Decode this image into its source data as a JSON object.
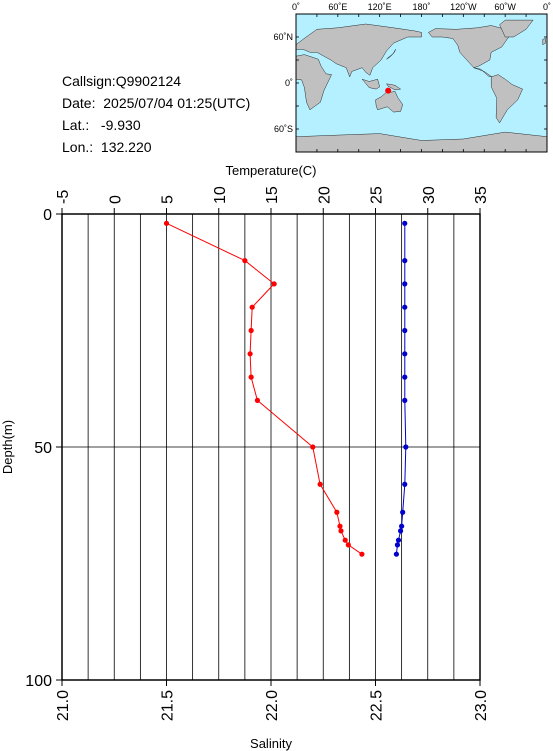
{
  "info": {
    "callsign": "Callsign:Q9902124",
    "date": "Date:  2025/07/04 01:25(UTC)",
    "lat": "Lat.:   -9.930",
    "lon": "Lon.:  132.220"
  },
  "map": {
    "top_labels": [
      "0˚",
      "60˚E",
      "120˚E",
      "180˚",
      "120˚W",
      "60˚W",
      "0˚"
    ],
    "left_labels": [
      "60˚N",
      "0˚",
      "60˚S"
    ],
    "ocean_color": "#b4f0ff",
    "land_color": "#c0c0c0",
    "marker_color": "#ff0000",
    "marker": {
      "lon": 132.22,
      "lat": -9.93
    }
  },
  "chart_data": {
    "type": "line",
    "title": "",
    "x_top_label": "Temperature(C)",
    "x_bottom_label": "Salinity",
    "ylabel": "Depth(m)",
    "x_top_lim": [
      -5,
      35
    ],
    "x_top_ticks": [
      "-5",
      "0",
      "5",
      "10",
      "15",
      "20",
      "25",
      "30",
      "35"
    ],
    "x_bottom_lim": [
      21.0,
      23.0
    ],
    "x_bottom_ticks": [
      "21.0",
      "21.5",
      "22.0",
      "22.5",
      "23.0"
    ],
    "ylim": [
      0,
      100
    ],
    "y_ticks": [
      "0",
      "50",
      "100"
    ],
    "grid": true,
    "series": [
      {
        "color": "#ff0000",
        "axis": "temperature",
        "points": [
          {
            "x": 5.0,
            "depth": 2
          },
          {
            "x": 12.5,
            "depth": 10
          },
          {
            "x": 15.3,
            "depth": 15
          },
          {
            "x": 13.2,
            "depth": 20
          },
          {
            "x": 13.1,
            "depth": 25
          },
          {
            "x": 13.0,
            "depth": 30
          },
          {
            "x": 13.1,
            "depth": 35
          },
          {
            "x": 13.7,
            "depth": 40
          },
          {
            "x": 19.0,
            "depth": 50
          },
          {
            "x": 19.7,
            "depth": 58
          },
          {
            "x": 21.3,
            "depth": 64
          },
          {
            "x": 21.6,
            "depth": 67
          },
          {
            "x": 21.7,
            "depth": 68
          },
          {
            "x": 22.1,
            "depth": 70
          },
          {
            "x": 22.4,
            "depth": 71
          },
          {
            "x": 23.7,
            "depth": 73
          }
        ]
      },
      {
        "color": "#0000cc",
        "axis": "salinity",
        "points": [
          {
            "x": 22.64,
            "depth": 2
          },
          {
            "x": 22.64,
            "depth": 10
          },
          {
            "x": 22.64,
            "depth": 15
          },
          {
            "x": 22.64,
            "depth": 20
          },
          {
            "x": 22.64,
            "depth": 25
          },
          {
            "x": 22.64,
            "depth": 30
          },
          {
            "x": 22.64,
            "depth": 35
          },
          {
            "x": 22.64,
            "depth": 40
          },
          {
            "x": 22.645,
            "depth": 50
          },
          {
            "x": 22.64,
            "depth": 58
          },
          {
            "x": 22.63,
            "depth": 64
          },
          {
            "x": 22.625,
            "depth": 67
          },
          {
            "x": 22.62,
            "depth": 68
          },
          {
            "x": 22.61,
            "depth": 70
          },
          {
            "x": 22.605,
            "depth": 71
          },
          {
            "x": 22.6,
            "depth": 73
          }
        ]
      }
    ]
  }
}
